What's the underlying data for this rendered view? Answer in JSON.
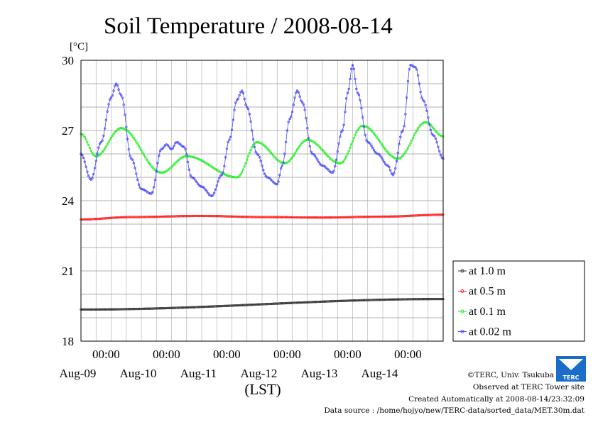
{
  "chart_data": {
    "type": "line",
    "title": "Soil Temperature / 2008-08-14",
    "ylabel": "[°C]",
    "xlabel": "(LST)",
    "ylim": [
      18,
      30
    ],
    "yticks": [
      18,
      21,
      24,
      27,
      30
    ],
    "xlim": [
      0,
      144
    ],
    "x_unit": "hours from 2008-08-08 14:00 LST",
    "xticks": [
      {
        "x": 10,
        "time": "00:00",
        "date": "Aug-09"
      },
      {
        "x": 34,
        "time": "00:00",
        "date": "Aug-10"
      },
      {
        "x": 58,
        "time": "00:00",
        "date": "Aug-11"
      },
      {
        "x": 82,
        "time": "00:00",
        "date": "Aug-12"
      },
      {
        "x": 106,
        "time": "00:00",
        "date": "Aug-13"
      },
      {
        "x": 130,
        "time": "00:00",
        "date": "Aug-14"
      }
    ],
    "grid": true,
    "legend_position": "right",
    "series": [
      {
        "name": "at 1.0 m",
        "color": "#333333",
        "points": [
          [
            0,
            19.35
          ],
          [
            144,
            19.8
          ]
        ]
      },
      {
        "name": "at 0.5 m",
        "color": "#ff2020",
        "points": [
          [
            0,
            23.2
          ],
          [
            20,
            23.3
          ],
          [
            48,
            23.35
          ],
          [
            72,
            23.3
          ],
          [
            96,
            23.28
          ],
          [
            120,
            23.32
          ],
          [
            144,
            23.4
          ]
        ]
      },
      {
        "name": "at 0.1 m",
        "color": "#22ee22",
        "points": [
          [
            0,
            26.85
          ],
          [
            6,
            25.9
          ],
          [
            16,
            27.1
          ],
          [
            32,
            25.2
          ],
          [
            42,
            25.9
          ],
          [
            62,
            25.0
          ],
          [
            70,
            26.5
          ],
          [
            81,
            25.6
          ],
          [
            90,
            26.6
          ],
          [
            103,
            25.6
          ],
          [
            112,
            27.2
          ],
          [
            126,
            25.8
          ],
          [
            137,
            27.35
          ],
          [
            144,
            26.75
          ]
        ]
      },
      {
        "name": "at 0.02 m",
        "color": "#4444ff",
        "points": [
          [
            0,
            26.0
          ],
          [
            4,
            24.9
          ],
          [
            8,
            26.5
          ],
          [
            12,
            28.4
          ],
          [
            14,
            29.0
          ],
          [
            16,
            28.5
          ],
          [
            20,
            25.8
          ],
          [
            24,
            24.5
          ],
          [
            28,
            24.3
          ],
          [
            32,
            26.2
          ],
          [
            34,
            26.4
          ],
          [
            36,
            26.2
          ],
          [
            38,
            26.5
          ],
          [
            41,
            26.3
          ],
          [
            44,
            25.0
          ],
          [
            48,
            24.6
          ],
          [
            52,
            24.2
          ],
          [
            56,
            25.1
          ],
          [
            59,
            26.6
          ],
          [
            62,
            28.3
          ],
          [
            64,
            28.7
          ],
          [
            66,
            28.0
          ],
          [
            70,
            26.0
          ],
          [
            74,
            25.0
          ],
          [
            78,
            24.7
          ],
          [
            80,
            25.5
          ],
          [
            83,
            27.5
          ],
          [
            86,
            28.7
          ],
          [
            88,
            28.2
          ],
          [
            92,
            26.0
          ],
          [
            96,
            25.5
          ],
          [
            100,
            25.2
          ],
          [
            104,
            27.0
          ],
          [
            106,
            28.6
          ],
          [
            108,
            29.8
          ],
          [
            110,
            28.6
          ],
          [
            114,
            26.5
          ],
          [
            118,
            26.0
          ],
          [
            122,
            25.5
          ],
          [
            124,
            25.1
          ],
          [
            128,
            27.0
          ],
          [
            131,
            29.8
          ],
          [
            133,
            29.7
          ],
          [
            136,
            28.3
          ],
          [
            140,
            26.8
          ],
          [
            144,
            25.8
          ]
        ]
      }
    ]
  },
  "footer": {
    "credit": "©TERC, Univ. Tsukuba",
    "observed": "Observed at TERC Tower site",
    "created": "Created Automatically at 2008-08-14/23:32:09",
    "source": "Data source : /home/hojyo/new/TERC-data/sorted_data/MET.30m.dat"
  },
  "logo": {
    "text": "TERC",
    "color": "#1a6ec8"
  }
}
